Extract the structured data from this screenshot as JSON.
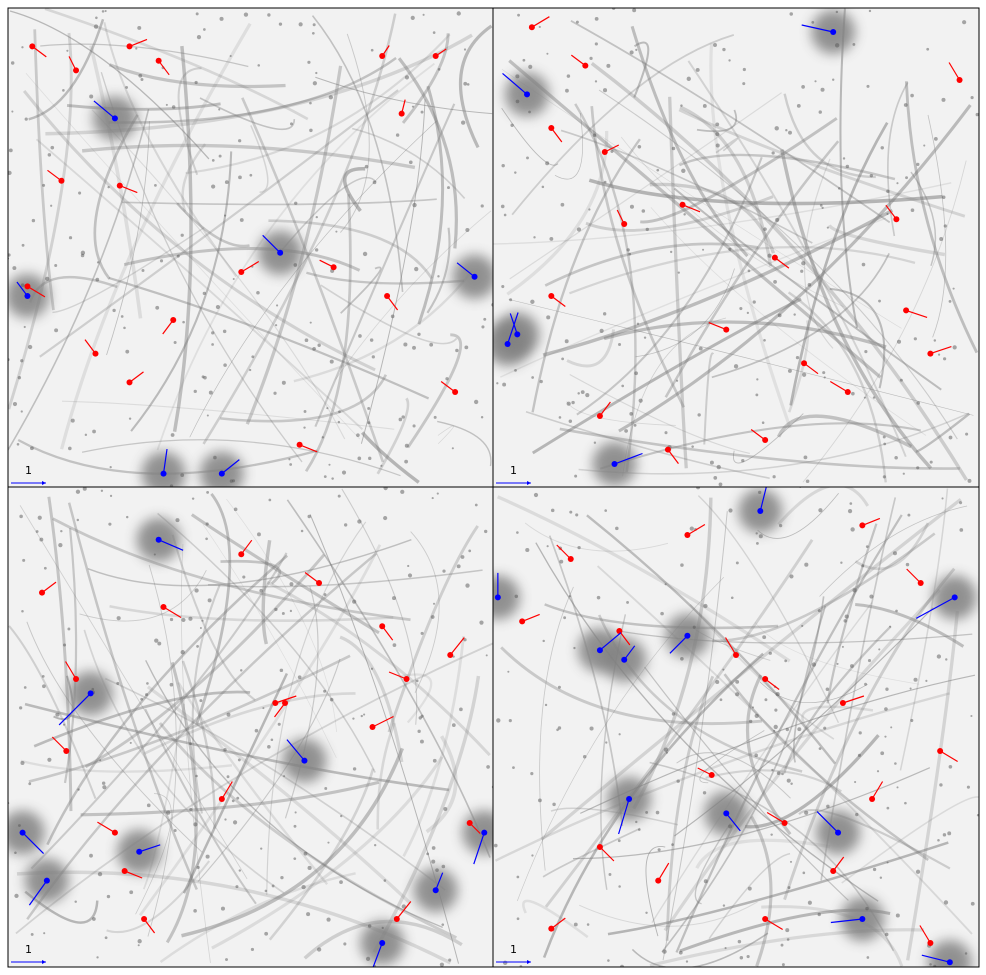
{
  "chart_data": [
    {
      "type": "quiver",
      "key": 1,
      "xlim": [
        0,
        100
      ],
      "ylim": [
        0,
        100
      ],
      "series": [
        {
          "color": "#ff0000",
          "x": [
            5,
            14,
            25,
            31,
            77,
            11,
            23,
            4,
            18,
            25,
            34,
            48,
            67,
            78,
            92,
            60,
            88,
            81
          ],
          "y": [
            92,
            87,
            92,
            89,
            90,
            64,
            63,
            42,
            28,
            22,
            35,
            45,
            46,
            40,
            20,
            9,
            90,
            78
          ],
          "u": [
            0.4,
            -0.2,
            0.5,
            0.3,
            0.2,
            -0.4,
            0.5,
            0.5,
            -0.3,
            0.4,
            -0.3,
            0.5,
            -0.4,
            0.3,
            -0.4,
            0.5,
            0.3,
            0.1
          ],
          "v": [
            -0.3,
            0.4,
            0.2,
            -0.4,
            0.3,
            0.3,
            -0.2,
            -0.3,
            0.4,
            0.3,
            -0.4,
            0.3,
            0.2,
            -0.4,
            0.3,
            -0.2,
            0.2,
            0.4
          ]
        },
        {
          "color": "#0000ff",
          "x": [
            22,
            56,
            96,
            4,
            32,
            44
          ],
          "y": [
            77,
            49,
            44,
            40,
            3,
            3
          ],
          "u": [
            -0.6,
            -0.5,
            -0.5,
            -0.3,
            0.1,
            0.5
          ],
          "v": [
            0.5,
            0.5,
            0.4,
            0.4,
            0.7,
            0.4
          ]
        }
      ]
    },
    {
      "type": "quiver",
      "key": 1,
      "xlim": [
        0,
        100
      ],
      "ylim": [
        0,
        100
      ],
      "series": [
        {
          "color": "#ff0000",
          "x": [
            8,
            12,
            19,
            23,
            27,
            39,
            58,
            83,
            90,
            73,
            12,
            22,
            48,
            64,
            85,
            96,
            36,
            56
          ],
          "y": [
            96,
            75,
            88,
            70,
            55,
            59,
            48,
            56,
            28,
            20,
            40,
            15,
            33,
            26,
            37,
            85,
            8,
            10
          ],
          "u": [
            0.5,
            0.3,
            -0.4,
            0.4,
            -0.2,
            0.5,
            0.4,
            -0.3,
            0.6,
            -0.5,
            0.4,
            0.3,
            -0.5,
            0.4,
            0.6,
            -0.3,
            0.3,
            -0.4
          ],
          "v": [
            0.3,
            -0.4,
            0.3,
            0.2,
            0.4,
            -0.2,
            -0.3,
            0.4,
            0.2,
            0.3,
            -0.3,
            0.4,
            0.2,
            -0.3,
            -0.2,
            0.5,
            -0.4,
            0.3
          ]
        },
        {
          "color": "#0000ff",
          "x": [
            7,
            3,
            5,
            25,
            70
          ],
          "y": [
            82,
            30,
            32,
            5,
            95
          ],
          "u": [
            -0.7,
            0.3,
            -0.2,
            0.8,
            -0.9
          ],
          "v": [
            0.6,
            0.9,
            0.6,
            0.3,
            0.2
          ]
        }
      ]
    },
    {
      "type": "quiver",
      "key": 1,
      "xlim": [
        0,
        100
      ],
      "ylim": [
        0,
        100
      ],
      "series": [
        {
          "color": "#ff0000",
          "x": [
            7,
            14,
            32,
            48,
            55,
            64,
            77,
            82,
            91,
            95,
            12,
            24,
            44,
            57,
            75,
            80,
            22,
            28
          ],
          "y": [
            78,
            60,
            75,
            86,
            55,
            80,
            71,
            60,
            65,
            30,
            45,
            20,
            35,
            55,
            50,
            10,
            28,
            10
          ],
          "u": [
            0.4,
            -0.3,
            0.5,
            0.3,
            0.6,
            -0.4,
            0.3,
            -0.5,
            0.4,
            0.3,
            -0.4,
            0.5,
            0.3,
            -0.3,
            0.6,
            0.4,
            -0.5,
            0.3
          ],
          "v": [
            0.3,
            0.5,
            -0.3,
            0.4,
            0.2,
            0.3,
            -0.4,
            0.2,
            0.5,
            -0.3,
            0.4,
            -0.2,
            0.5,
            -0.4,
            0.3,
            0.5,
            0.3,
            -0.4
          ]
        },
        {
          "color": "#0000ff",
          "x": [
            31,
            17,
            3,
            8,
            27,
            61,
            98,
            77,
            88
          ],
          "y": [
            89,
            57,
            28,
            18,
            24,
            43,
            28,
            5,
            16
          ],
          "u": [
            0.7,
            -0.9,
            0.6,
            -0.5,
            0.6,
            -0.5,
            -0.3,
            -0.3,
            0.2
          ],
          "v": [
            -0.3,
            -0.9,
            -0.6,
            -0.7,
            0.2,
            0.6,
            -0.9,
            -0.8,
            0.5
          ]
        }
      ]
    },
    {
      "type": "quiver",
      "key": 1,
      "xlim": [
        0,
        100
      ],
      "ylim": [
        0,
        100
      ],
      "series": [
        {
          "color": "#ff0000",
          "x": [
            6,
            16,
            26,
            40,
            50,
            56,
            72,
            88,
            92,
            78,
            60,
            22,
            34,
            45,
            56,
            70,
            90,
            12,
            76
          ],
          "y": [
            72,
            85,
            70,
            90,
            65,
            60,
            55,
            80,
            45,
            35,
            30,
            25,
            18,
            40,
            10,
            20,
            5,
            8,
            92
          ],
          "u": [
            0.5,
            -0.4,
            0.3,
            0.5,
            -0.3,
            0.4,
            0.6,
            -0.4,
            0.5,
            0.3,
            -0.5,
            0.4,
            0.3,
            -0.4,
            0.5,
            0.3,
            -0.3,
            0.4,
            0.5
          ],
          "v": [
            0.2,
            0.4,
            -0.4,
            0.3,
            0.5,
            -0.3,
            0.2,
            0.4,
            -0.3,
            0.5,
            0.3,
            -0.4,
            0.5,
            0.2,
            -0.3,
            0.4,
            0.5,
            0.3,
            0.2
          ]
        },
        {
          "color": "#0000ff",
          "x": [
            1,
            22,
            27,
            40,
            55,
            95,
            28,
            48,
            71,
            76,
            94
          ],
          "y": [
            77,
            66,
            64,
            69,
            95,
            77,
            35,
            32,
            28,
            10,
            1
          ],
          "u": [
            0,
            0.6,
            0.3,
            -0.5,
            0.2,
            -1.1,
            -0.3,
            0.4,
            -0.6,
            -0.9,
            -0.8
          ],
          "v": [
            0.7,
            0.5,
            0.4,
            -0.5,
            0.8,
            -0.6,
            -1.0,
            -0.5,
            0.6,
            -0.1,
            0.2
          ]
        }
      ]
    }
  ]
}
